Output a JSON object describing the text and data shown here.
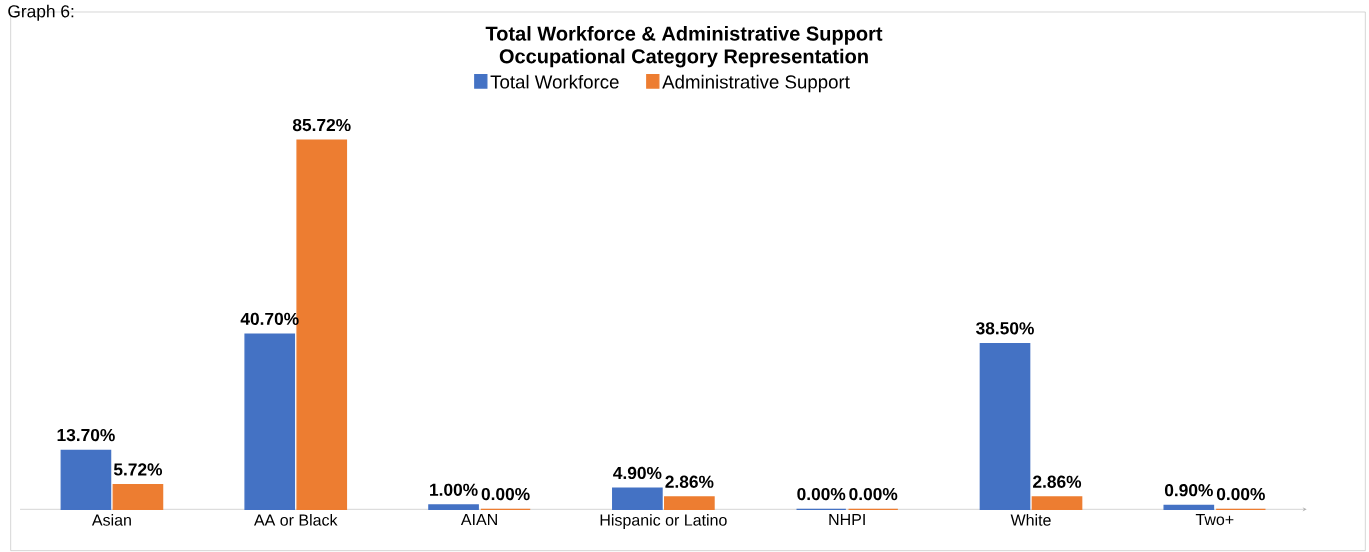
{
  "chart_data": {
    "type": "bar",
    "title": "Total Workforce & Administrative Support",
    "subtitle": "Occupational Category Representation",
    "annotations": [
      "Graph 6:"
    ],
    "categories": [
      "Asian",
      "AA or Black",
      "AIAN",
      "Hispanic or Latino",
      "NHPI",
      "White",
      "Two+"
    ],
    "series": [
      {
        "name": "Total Workforce",
        "color": "#4472c4",
        "values": [
          13.7,
          40.7,
          1.0,
          4.9,
          0.0,
          38.5,
          0.9
        ],
        "value_labels": [
          "13.70%",
          "40.70%",
          "1.00%",
          "4.90%",
          "0.00%",
          "38.50%",
          "0.90%"
        ]
      },
      {
        "name": "Administrative Support",
        "color": "#ed7d31",
        "values": [
          5.72,
          85.72,
          0.0,
          2.86,
          0.0,
          2.86,
          0.0
        ],
        "value_labels": [
          "5.72%",
          "85.72%",
          "0.00%",
          "2.86%",
          "0.00%",
          "2.86%",
          "0.00%"
        ]
      }
    ],
    "legend": "top"
  }
}
